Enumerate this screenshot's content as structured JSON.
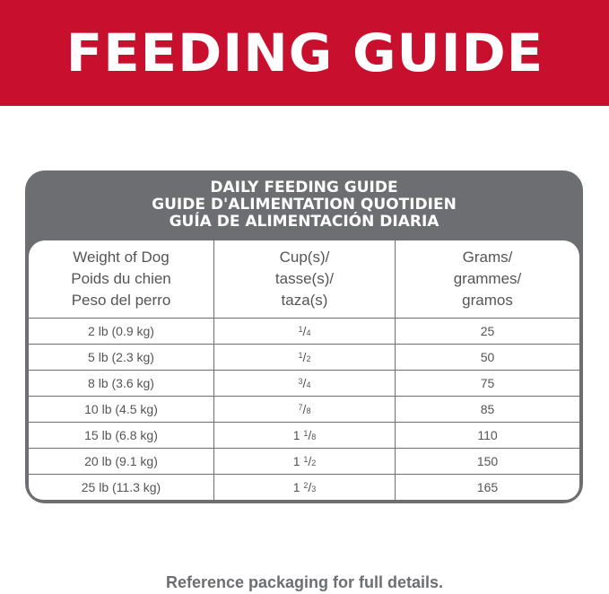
{
  "banner": {
    "title": "FEEDING GUIDE",
    "color": "#c8102e"
  },
  "table": {
    "title_lines": [
      "DAILY FEEDING GUIDE",
      "GUIDE D'ALIMENTATION QUOTIDIEN",
      "GUÍA DE ALIMENTACIÓN DIARIA"
    ],
    "headers": [
      [
        "Weight of Dog",
        "Poids du chien",
        "Peso del perro"
      ],
      [
        "Cup(s)/",
        "tasse(s)/",
        "taza(s)"
      ],
      [
        "Grams/",
        "grammes/",
        "gramos"
      ]
    ],
    "rows": [
      {
        "weight": "2 lb (0.9 kg)",
        "cup_whole": "",
        "cup_num": "1",
        "cup_den": "4",
        "grams": "25"
      },
      {
        "weight": "5 lb (2.3 kg)",
        "cup_whole": "",
        "cup_num": "1",
        "cup_den": "2",
        "grams": "50"
      },
      {
        "weight": "8 lb (3.6 kg)",
        "cup_whole": "",
        "cup_num": "3",
        "cup_den": "4",
        "grams": "75"
      },
      {
        "weight": "10 lb (4.5 kg)",
        "cup_whole": "",
        "cup_num": "7",
        "cup_den": "8",
        "grams": "85"
      },
      {
        "weight": "15 lb (6.8 kg)",
        "cup_whole": "1",
        "cup_num": "1",
        "cup_den": "8",
        "grams": "110"
      },
      {
        "weight": "20 lb (9.1 kg)",
        "cup_whole": "1",
        "cup_num": "1",
        "cup_den": "2",
        "grams": "150"
      },
      {
        "weight": "25 lb (11.3 kg)",
        "cup_whole": "1",
        "cup_num": "2",
        "cup_den": "3",
        "grams": "165"
      }
    ],
    "frame_color": "#6d6e71"
  },
  "footer": {
    "text": "Reference packaging for full details."
  }
}
